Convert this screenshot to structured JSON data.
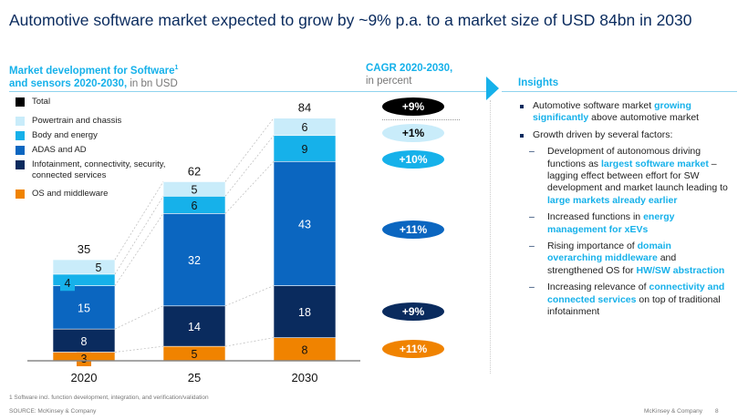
{
  "title": "Automotive software market expected to grow by ~9% p.a. to a market size of USD 84bn in 2030",
  "left_header": {
    "line1": "Market development for Software",
    "sup": "1",
    "line2": "and sensors 2020-2030,",
    "unit": " in bn USD"
  },
  "cagr_header": {
    "line1": "CAGR 2020-2030,",
    "line2": "in percent"
  },
  "insights_header": "Insights",
  "legend": [
    {
      "label": "Total",
      "color": "#000000"
    },
    {
      "label": "Powertrain and chassis",
      "color": "#c9ecfa"
    },
    {
      "label": "Body and energy",
      "color": "#16b1ea"
    },
    {
      "label": "ADAS and AD",
      "color": "#0b66c0"
    },
    {
      "label": "Infotainment, connectivity, security, connected services",
      "color": "#0a2b5e"
    },
    {
      "label": "OS and middleware",
      "color": "#f08300"
    }
  ],
  "chart_data": {
    "type": "bar",
    "stacked": true,
    "categories": [
      "2020",
      "25",
      "2030"
    ],
    "series": [
      {
        "name": "OS and middleware",
        "color": "#f08300",
        "values": [
          3,
          5,
          8
        ]
      },
      {
        "name": "Infotainment, connectivity, security, connected services",
        "color": "#0a2b5e",
        "values": [
          8,
          14,
          18
        ]
      },
      {
        "name": "ADAS and AD",
        "color": "#0b66c0",
        "values": [
          15,
          32,
          43
        ]
      },
      {
        "name": "Body and energy",
        "color": "#16b1ea",
        "values": [
          4,
          6,
          9
        ]
      },
      {
        "name": "Powertrain and chassis",
        "color": "#c9ecfa",
        "values": [
          5,
          5,
          6
        ]
      }
    ],
    "totals": [
      35,
      62,
      84
    ],
    "cagr": [
      {
        "segment": "Total",
        "value": "+9%",
        "color": "#000000",
        "text": "#ffffff"
      },
      {
        "segment": "Powertrain and chassis",
        "value": "+1%",
        "color": "#c9ecfa",
        "text": "#000000"
      },
      {
        "segment": "Body and energy",
        "value": "+10%",
        "color": "#16b1ea",
        "text": "#ffffff"
      },
      {
        "segment": "ADAS and AD",
        "value": "+11%",
        "color": "#0b66c0",
        "text": "#ffffff"
      },
      {
        "segment": "Infotainment, connectivity, security, connected services",
        "value": "+9%",
        "color": "#0a2b5e",
        "text": "#ffffff"
      },
      {
        "segment": "OS and middleware",
        "value": "+11%",
        "color": "#f08300",
        "text": "#ffffff"
      }
    ],
    "unit": "bn USD"
  },
  "insights": [
    {
      "level": 1,
      "parts": [
        {
          "t": "Automotive software market "
        },
        {
          "t": "growing significantly",
          "hl": true
        },
        {
          "t": " above automotive market"
        }
      ]
    },
    {
      "level": 1,
      "parts": [
        {
          "t": "Growth driven by several factors:"
        }
      ]
    },
    {
      "level": 2,
      "parts": [
        {
          "t": "Development of autonomous driving functions as "
        },
        {
          "t": "largest software market",
          "hl": true
        },
        {
          "t": " – lagging effect between effort for SW development and market launch leading to "
        },
        {
          "t": "large markets already earlier",
          "hl": true
        }
      ]
    },
    {
      "level": 2,
      "parts": [
        {
          "t": "Increased functions in "
        },
        {
          "t": "energy management for xEVs",
          "hl": true
        }
      ]
    },
    {
      "level": 2,
      "parts": [
        {
          "t": "Rising importance of "
        },
        {
          "t": "domain overarching middleware",
          "hl": true
        },
        {
          "t": " and strengthened OS for "
        },
        {
          "t": "HW/SW abstraction",
          "hl": true
        }
      ]
    },
    {
      "level": 2,
      "parts": [
        {
          "t": "Increasing relevance of "
        },
        {
          "t": "connectivity and connected services",
          "hl": true
        },
        {
          "t": " on top of traditional infotainment"
        }
      ]
    }
  ],
  "footnote": "1 Software incl. function development, integration, and verification/validation",
  "source": "SOURCE: McKinsey & Company",
  "brand": "McKinsey & Company",
  "page_number": "8"
}
